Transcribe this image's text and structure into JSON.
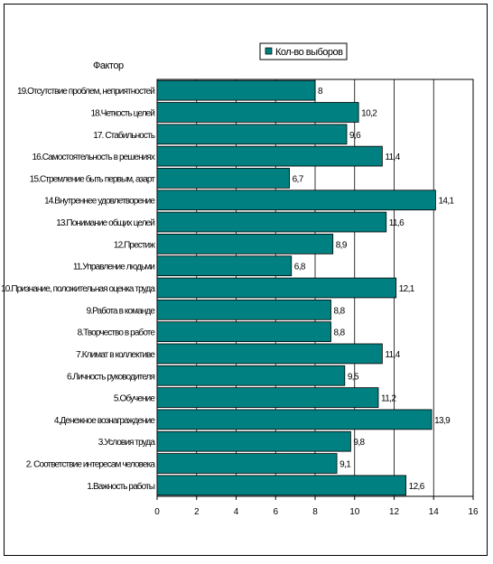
{
  "chart_data": {
    "type": "bar",
    "orientation": "horizontal",
    "title": "Фактор",
    "legend": {
      "position": "top-right",
      "entries": [
        "Кол-во выборов"
      ]
    },
    "categories": [
      "1.Важность работы",
      "2. Соответствие интересам человека",
      "3.Условия труда",
      "4.Денежное вознаграждение",
      "5.Обучение",
      "6.Личность руководителя",
      "7.Климат в коллективе",
      "8.Творчество в работе",
      "9.Работа в команде",
      "10.Признание, положительная оценка труда",
      "11.Управление людьми",
      "12.Престиж",
      "13.Понимание общих целей",
      "14.Внутреннее удовлетворение",
      "15.Стремление быть первым, азарт",
      "16.Самостоятельность в решениях",
      "17. Стабильность",
      "18.Четкость целей",
      "19.Отсутствие проблем, неприятностей"
    ],
    "series": [
      {
        "name": "Кол-во выборов",
        "values": [
          12.6,
          9.1,
          9.8,
          13.9,
          11.2,
          9.5,
          11.4,
          8.8,
          8.8,
          12.1,
          6.8,
          8.9,
          11.6,
          14.1,
          6.7,
          11.4,
          9.6,
          10.2,
          8
        ]
      }
    ],
    "value_labels": [
      "12,6",
      "9,1",
      "9,8",
      "13,9",
      "11,2",
      "9,5",
      "11,4",
      "8,8",
      "8,8",
      "12,1",
      "6,8",
      "8,9",
      "11,6",
      "14,1",
      "6,7",
      "11,4",
      "9,6",
      "10,2",
      "8"
    ],
    "xlim": [
      0,
      16
    ],
    "xticks": [
      "0",
      "2",
      "4",
      "6",
      "8",
      "10",
      "12",
      "14",
      "16"
    ],
    "grid": true,
    "colors": {
      "bar": "#008080",
      "plot_bg": "#ffffff",
      "grid": "#000000"
    }
  }
}
